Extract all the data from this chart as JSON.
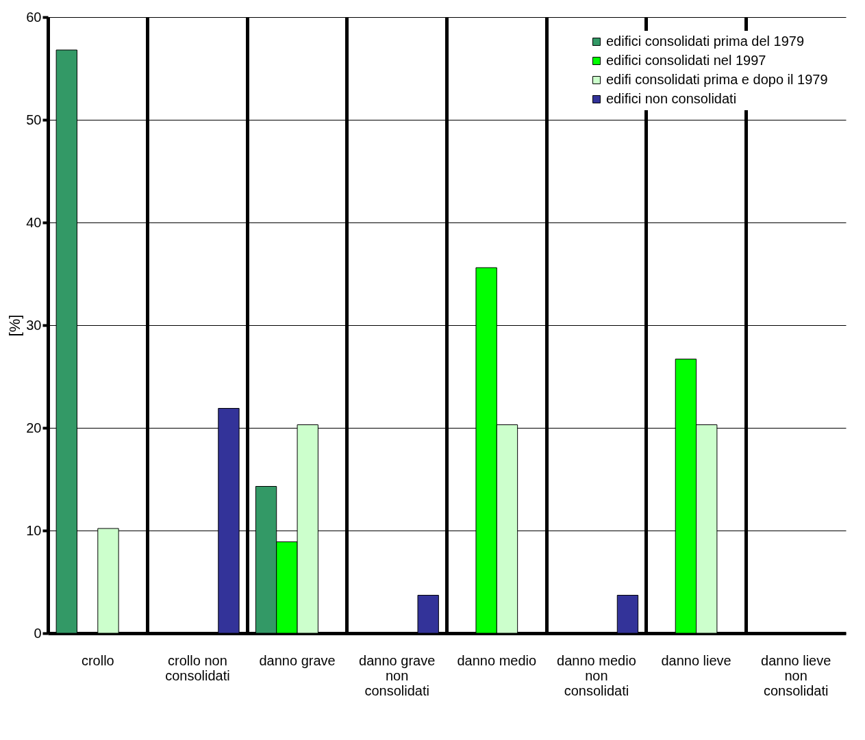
{
  "chart_data": {
    "type": "bar",
    "ylabel": "[%]",
    "categories": [
      "crollo",
      "crollo non consolidati",
      "danno grave",
      "danno grave non consolidati",
      "danno medio",
      "danno medio non consolidati",
      "danno lieve",
      "danno lieve non consolidati"
    ],
    "series": [
      {
        "name": "edifici consolidati prima del 1979",
        "color": "#339966",
        "values": [
          56.8,
          null,
          14.3,
          null,
          null,
          null,
          null,
          null
        ]
      },
      {
        "name": "edifici consolidati nel 1997",
        "color": "#00ff00",
        "values": [
          null,
          null,
          8.9,
          null,
          35.6,
          null,
          26.7,
          null
        ]
      },
      {
        "name": "edifi consolidati prima e dopo il 1979",
        "color": "#ccffcc",
        "values": [
          10.2,
          null,
          20.3,
          null,
          20.3,
          null,
          20.3,
          null
        ]
      },
      {
        "name": "edifici non consolidati",
        "color": "#333399",
        "values": [
          null,
          21.9,
          null,
          3.7,
          null,
          3.7,
          null,
          null
        ]
      }
    ],
    "ylim": [
      0,
      60
    ],
    "yticks": [
      0,
      10,
      20,
      30,
      40,
      50,
      60
    ],
    "grid": true,
    "legend": "top right"
  }
}
